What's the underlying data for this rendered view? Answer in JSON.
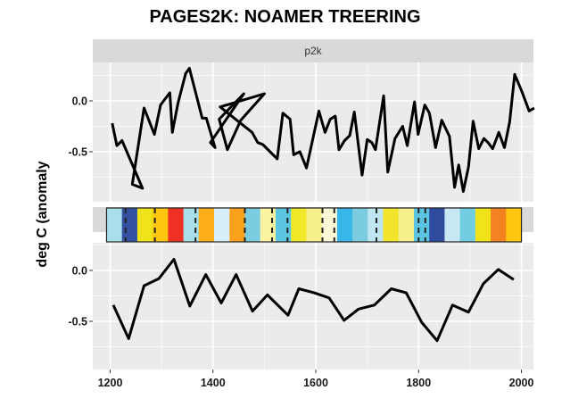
{
  "title": "PAGES2K: NOAMER TREERING",
  "ylabel": "deg C (anomaly",
  "strip_label": "p2k",
  "colors": {
    "panel_bg": "#EBEBEB",
    "strip_bg": "#D9D9D9",
    "grid": "#FFFFFF",
    "line": "#000000"
  },
  "color_band": [
    "#A9DEEB",
    "#3451A1",
    "#F1E31A",
    "#FDC70F",
    "#EE3124",
    "#A9DEEB",
    "#FDAE19",
    "#D6EFF9",
    "#F9A11B",
    "#7CCCE0",
    "#FAF3A0",
    "#5BC5E2",
    "#F2E82A",
    "#F6F08C",
    "#FEF9D7",
    "#38B7EA",
    "#7CCCE0",
    "#C0E6F2",
    "#F2E42A",
    "#F6F08C",
    "#5BC5E2",
    "#2F4B9E",
    "#C8E8F3",
    "#73CDE0",
    "#F1E31A",
    "#F58220",
    "#FDC70F"
  ],
  "chart_data": [
    {
      "type": "line",
      "title": "PAGES2K: NOAMER TREERING",
      "panel": "p2k (upper)",
      "xlabel": "",
      "ylabel": "deg C (anomaly",
      "xlim": [
        1170,
        2025
      ],
      "ylim": [
        -0.93,
        0.35
      ],
      "xticks": [
        1200,
        1400,
        1600,
        1800,
        2000
      ],
      "yticks": [
        0.0,
        -0.5
      ],
      "grid": true,
      "x": [
        1204,
        1213,
        1223,
        1263,
        1243,
        1266,
        1286,
        1298,
        1316,
        1321,
        1332,
        1347,
        1354,
        1379,
        1387,
        1404,
        1395,
        1460,
        1412,
        1428,
        1454,
        1500,
        1414,
        1476,
        1487,
        1497,
        1525,
        1536,
        1550,
        1557,
        1569,
        1582,
        1606,
        1618,
        1628,
        1638,
        1645,
        1656,
        1666,
        1675,
        1690,
        1700,
        1709,
        1716,
        1732,
        1740,
        1754,
        1769,
        1778,
        1792,
        1799,
        1812,
        1821,
        1833,
        1845,
        1860,
        1870,
        1878,
        1887,
        1897,
        1906,
        1917,
        1927,
        1935,
        1944,
        1956,
        1967,
        1977,
        1987,
        2001,
        2015,
        2025
      ],
      "values": [
        -0.22,
        -0.44,
        -0.39,
        -0.86,
        -0.82,
        -0.07,
        -0.33,
        -0.04,
        0.08,
        -0.31,
        -0.02,
        0.27,
        0.32,
        -0.17,
        -0.17,
        -0.46,
        -0.41,
        0.07,
        -0.18,
        -0.48,
        -0.19,
        0.07,
        -0.06,
        -0.31,
        -0.41,
        -0.43,
        -0.57,
        -0.12,
        -0.18,
        -0.53,
        -0.5,
        -0.66,
        -0.1,
        -0.31,
        -0.18,
        -0.15,
        -0.48,
        -0.39,
        -0.34,
        -0.11,
        -0.73,
        -0.38,
        -0.41,
        -0.48,
        0.05,
        -0.7,
        -0.37,
        -0.25,
        -0.44,
        -0.01,
        -0.33,
        -0.04,
        -0.12,
        -0.46,
        -0.19,
        -0.35,
        -0.85,
        -0.63,
        -0.89,
        -0.65,
        -0.2,
        -0.47,
        -0.37,
        -0.41,
        -0.47,
        -0.31,
        -0.46,
        -0.21,
        0.26,
        0.09,
        -0.1,
        -0.07
      ]
    },
    {
      "type": "line",
      "panel": "lower (binned)",
      "xlim": [
        1170,
        2025
      ],
      "ylim": [
        -0.93,
        0.2
      ],
      "xticks": [
        1200,
        1400,
        1600,
        1800,
        2000
      ],
      "yticks": [
        0.0,
        -0.5
      ],
      "grid": true,
      "x": [
        1206,
        1236,
        1266,
        1295,
        1324,
        1355,
        1386,
        1416,
        1445,
        1477,
        1506,
        1546,
        1567,
        1597,
        1626,
        1655,
        1683,
        1714,
        1747,
        1776,
        1806,
        1836,
        1866,
        1897,
        1926,
        1955,
        1985
      ],
      "values": [
        -0.34,
        -0.67,
        -0.15,
        -0.08,
        0.11,
        -0.35,
        -0.04,
        -0.32,
        -0.04,
        -0.4,
        -0.24,
        -0.44,
        -0.18,
        -0.22,
        -0.27,
        -0.49,
        -0.38,
        -0.34,
        -0.18,
        -0.22,
        -0.51,
        -0.69,
        -0.34,
        -0.41,
        -0.13,
        0.01,
        -0.09
      ]
    }
  ],
  "x_tick_labels": [
    "1200",
    "1400",
    "1600",
    "1800",
    "2000"
  ],
  "upper_y_tick_labels": [
    "0.0",
    "-0.5"
  ],
  "lower_y_tick_labels": [
    "0.0",
    "-0.5"
  ]
}
